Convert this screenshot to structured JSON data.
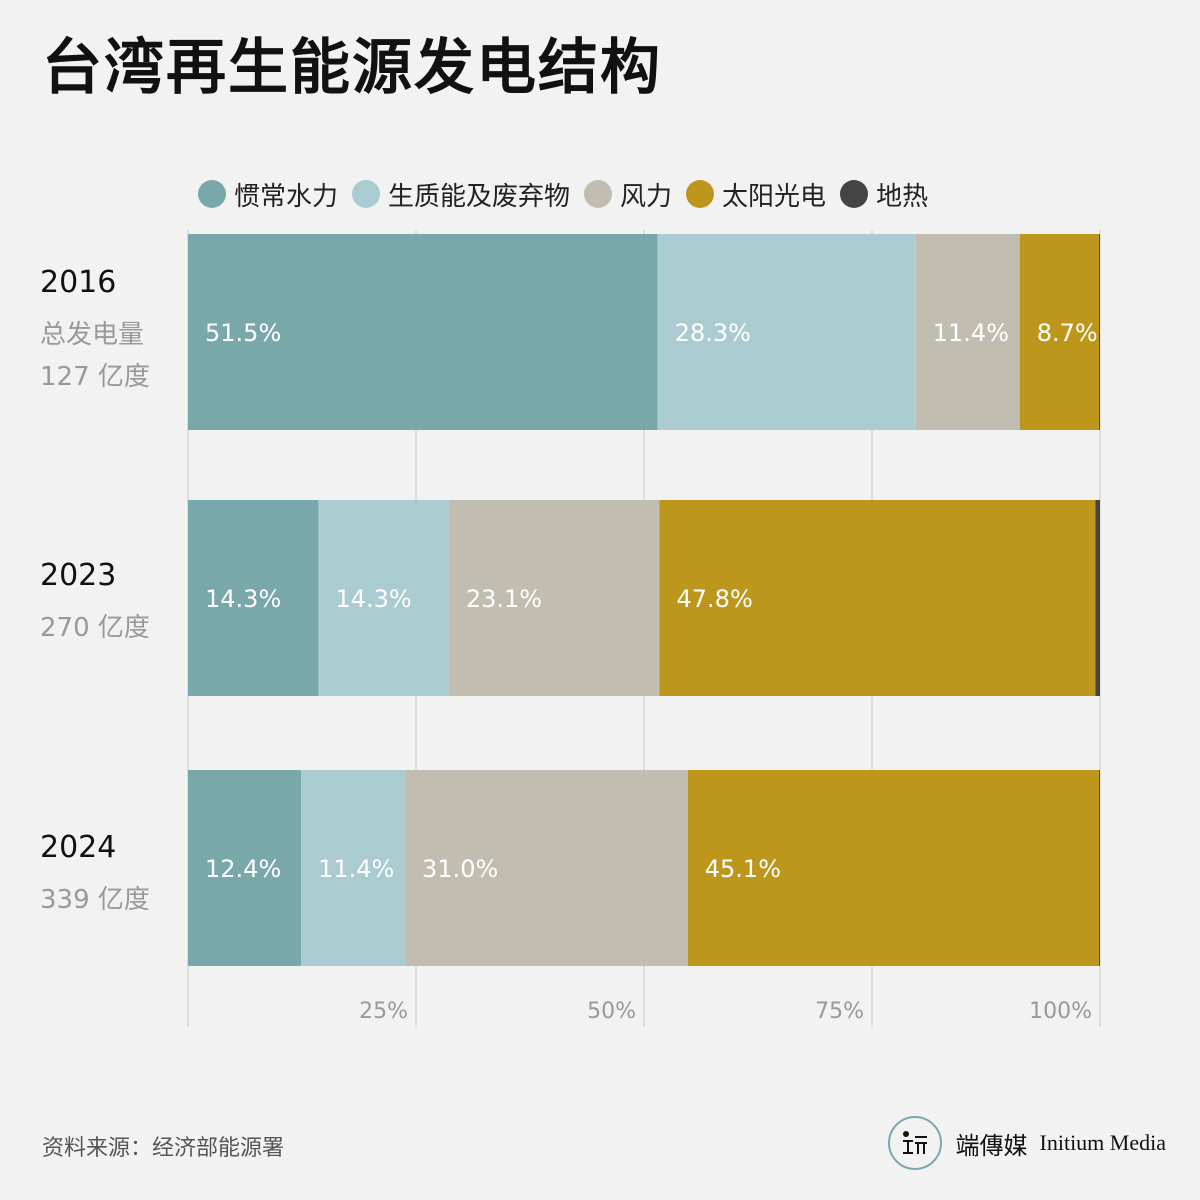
{
  "title": "台湾再生能源发电结构",
  "legend": [
    {
      "label": "惯常水力",
      "color": "#79a8ab"
    },
    {
      "label": "生质能及废弃物",
      "color": "#aacbd0"
    },
    {
      "label": "风力",
      "color": "#c1bdb1"
    },
    {
      "label": "太阳光电",
      "color": "#bd961c"
    },
    {
      "label": "地热",
      "color": "#444444"
    }
  ],
  "chart_data": {
    "type": "bar",
    "orientation": "horizontal",
    "stacked": true,
    "xlim": [
      0,
      100
    ],
    "x_ticks": [
      "25%",
      "50%",
      "75%",
      "100%"
    ],
    "grid": true,
    "legend_position": "top",
    "categories": [
      {
        "year": "2016",
        "sub": [
          "总发电量",
          "127 亿度"
        ]
      },
      {
        "year": "2023",
        "sub": [
          "270 亿度"
        ]
      },
      {
        "year": "2024",
        "sub": [
          "339 亿度"
        ]
      }
    ],
    "series": [
      {
        "name": "惯常水力",
        "color": "#79a8ab",
        "values": [
          51.5,
          14.3,
          12.4
        ],
        "labels": [
          "51.5%",
          "14.3%",
          "12.4%"
        ]
      },
      {
        "name": "生质能及废弃物",
        "color": "#aacbd0",
        "values": [
          28.3,
          14.3,
          11.4
        ],
        "labels": [
          "28.3%",
          "14.3%",
          "11.4%"
        ]
      },
      {
        "name": "风力",
        "color": "#c1bdb1",
        "values": [
          11.4,
          23.1,
          31.0
        ],
        "labels": [
          "11.4%",
          "23.1%",
          "31.0%"
        ]
      },
      {
        "name": "太阳光电",
        "color": "#bd961c",
        "values": [
          8.7,
          47.8,
          45.1
        ],
        "labels": [
          "8.7%",
          "47.8%",
          "45.1%"
        ]
      },
      {
        "name": "地热",
        "color": "#444444",
        "values": [
          0.1,
          0.5,
          0.1
        ],
        "labels": [
          "",
          "",
          ""
        ]
      }
    ]
  },
  "source": "资料来源：经济部能源署",
  "brand": {
    "cn": "端傳媒",
    "en": "Initium Media"
  }
}
